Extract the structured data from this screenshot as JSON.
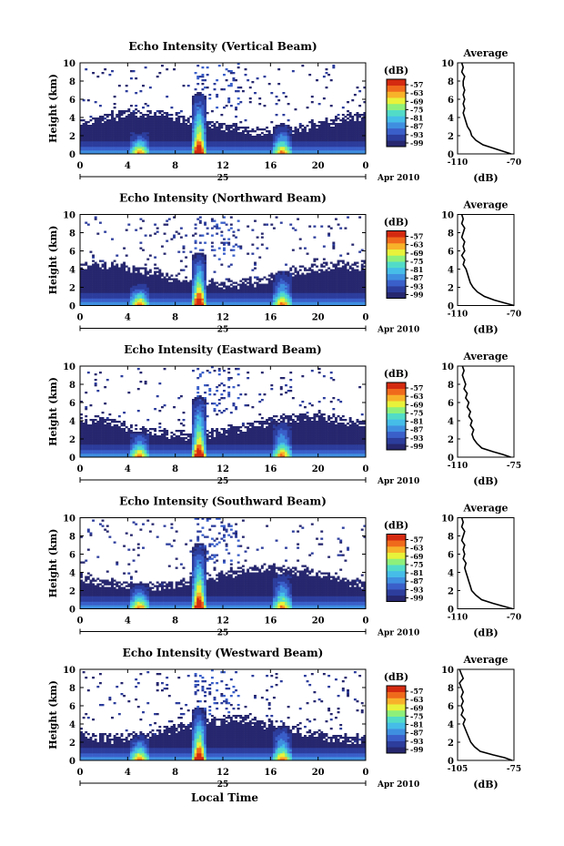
{
  "figure": {
    "date_label": "Apr 2010",
    "day_label": "25",
    "xlabel": "Local Time",
    "ylabel": "Height (km)",
    "colorbar_unit": "(dB)",
    "avg_title": "Average",
    "avg_unit": "(dB)",
    "colormap": [
      "#26276e",
      "#2c3d9c",
      "#3a5fc9",
      "#3f8fe0",
      "#45bde8",
      "#52dcc8",
      "#8ef07a",
      "#e8f23a",
      "#f8b22a",
      "#f06a1c",
      "#d42a10"
    ]
  },
  "chart_data": [
    {
      "type": "heatmap",
      "title": "Echo Intensity (Vertical Beam)",
      "x_ticks": [
        "0",
        "4",
        "8",
        "12",
        "16",
        "20",
        "0"
      ],
      "xlim": [
        0,
        24
      ],
      "y_ticks": [
        "0",
        "2",
        "4",
        "6",
        "8",
        "10"
      ],
      "ylim": [
        0,
        10
      ],
      "colorbar_ticks": [
        "-57",
        "-63",
        "-69",
        "-75",
        "-81",
        "-87",
        "-93",
        "-99"
      ],
      "convective_cells_local_time": [
        5,
        10,
        17
      ],
      "peak_echo_top_km": [
        2.5,
        7.0,
        3.5
      ],
      "avg_profile": {
        "xlim": [
          -110,
          -70
        ],
        "x_ticks": [
          "-110",
          "-70"
        ],
        "y_ticks": [
          "0",
          "2",
          "4",
          "6",
          "8",
          "10"
        ],
        "height_km": [
          0,
          0.3,
          0.6,
          1,
          1.5,
          2,
          2.5,
          3,
          3.5,
          4,
          4.5,
          5,
          5.5,
          6,
          6.5,
          7,
          7.5,
          8,
          8.5,
          9,
          9.5,
          10
        ],
        "db": [
          -72,
          -78,
          -84,
          -92,
          -97,
          -100,
          -101,
          -103,
          -104,
          -105,
          -106,
          -105,
          -106,
          -105,
          -106,
          -105,
          -106,
          -106,
          -105,
          -107,
          -106,
          -107
        ]
      }
    },
    {
      "type": "heatmap",
      "title": "Echo Intensity (Northward Beam)",
      "x_ticks": [
        "0",
        "4",
        "8",
        "12",
        "16",
        "20",
        "0"
      ],
      "xlim": [
        0,
        24
      ],
      "y_ticks": [
        "0",
        "2",
        "4",
        "6",
        "8",
        "10"
      ],
      "ylim": [
        0,
        10
      ],
      "colorbar_ticks": [
        "-57",
        "-63",
        "-69",
        "-75",
        "-81",
        "-87",
        "-93",
        "-99"
      ],
      "convective_cells_local_time": [
        5,
        10,
        17
      ],
      "peak_echo_top_km": [
        2.5,
        6.0,
        4.0
      ],
      "avg_profile": {
        "xlim": [
          -110,
          -70
        ],
        "x_ticks": [
          "-110",
          "-70"
        ],
        "y_ticks": [
          "0",
          "2",
          "4",
          "6",
          "8",
          "10"
        ],
        "height_km": [
          0,
          0.3,
          0.6,
          1,
          1.5,
          2,
          2.5,
          3,
          3.5,
          4,
          4.5,
          5,
          5.5,
          6,
          6.5,
          7,
          7.5,
          8,
          8.5,
          9,
          9.5,
          10
        ],
        "db": [
          -70,
          -77,
          -84,
          -91,
          -96,
          -99,
          -101,
          -102,
          -103,
          -104,
          -106,
          -105,
          -107,
          -105,
          -106,
          -105,
          -107,
          -106,
          -105,
          -107,
          -106,
          -107
        ]
      }
    },
    {
      "type": "heatmap",
      "title": "Echo Intensity (Eastward Beam)",
      "x_ticks": [
        "0",
        "4",
        "8",
        "12",
        "16",
        "20",
        "0"
      ],
      "xlim": [
        0,
        24
      ],
      "y_ticks": [
        "0",
        "2",
        "4",
        "6",
        "8",
        "10"
      ],
      "ylim": [
        0,
        10
      ],
      "colorbar_ticks": [
        "-57",
        "-63",
        "-69",
        "-75",
        "-81",
        "-87",
        "-93",
        "-99"
      ],
      "convective_cells_local_time": [
        5,
        10,
        17
      ],
      "peak_echo_top_km": [
        3.0,
        7.0,
        4.0
      ],
      "avg_profile": {
        "xlim": [
          -110,
          -75
        ],
        "x_ticks": [
          "-110",
          "-75"
        ],
        "y_ticks": [
          "0",
          "2",
          "4",
          "6",
          "8",
          "10"
        ],
        "height_km": [
          0,
          0.3,
          0.6,
          1,
          1.5,
          2,
          2.5,
          3,
          3.5,
          4,
          4.5,
          5,
          5.5,
          6,
          6.5,
          7,
          7.5,
          8,
          8.5,
          9,
          9.5,
          10
        ],
        "db": [
          -77,
          -82,
          -88,
          -95,
          -98,
          -100,
          -101,
          -100,
          -102,
          -101,
          -103,
          -102,
          -104,
          -103,
          -105,
          -104,
          -106,
          -105,
          -106,
          -107,
          -106,
          -107
        ]
      }
    },
    {
      "type": "heatmap",
      "title": "Echo Intensity (Southward Beam)",
      "x_ticks": [
        "0",
        "4",
        "8",
        "12",
        "16",
        "20",
        "0"
      ],
      "xlim": [
        0,
        24
      ],
      "y_ticks": [
        "0",
        "2",
        "4",
        "6",
        "8",
        "10"
      ],
      "ylim": [
        0,
        10
      ],
      "colorbar_ticks": [
        "-57",
        "-63",
        "-69",
        "-75",
        "-81",
        "-87",
        "-93",
        "-99"
      ],
      "convective_cells_local_time": [
        5,
        10,
        17
      ],
      "peak_echo_top_km": [
        3.0,
        7.5,
        4.0
      ],
      "avg_profile": {
        "xlim": [
          -110,
          -70
        ],
        "x_ticks": [
          "-110",
          "-70"
        ],
        "y_ticks": [
          "0",
          "2",
          "4",
          "6",
          "8",
          "10"
        ],
        "height_km": [
          0,
          0.3,
          0.6,
          1,
          1.5,
          2,
          2.5,
          3,
          3.5,
          4,
          4.5,
          5,
          5.5,
          6,
          6.5,
          7,
          7.5,
          8,
          8.5,
          9,
          9.5,
          10
        ],
        "db": [
          -71,
          -78,
          -85,
          -93,
          -97,
          -100,
          -101,
          -102,
          -103,
          -104,
          -105,
          -104,
          -106,
          -105,
          -106,
          -105,
          -107,
          -106,
          -105,
          -107,
          -106,
          -107
        ]
      }
    },
    {
      "type": "heatmap",
      "title": "Echo Intensity (Westward Beam)",
      "x_ticks": [
        "0",
        "4",
        "8",
        "12",
        "16",
        "20",
        "0"
      ],
      "xlim": [
        0,
        24
      ],
      "y_ticks": [
        "0",
        "2",
        "4",
        "6",
        "8",
        "10"
      ],
      "ylim": [
        0,
        10
      ],
      "colorbar_ticks": [
        "-57",
        "-63",
        "-69",
        "-75",
        "-81",
        "-87",
        "-93",
        "-99"
      ],
      "convective_cells_local_time": [
        5,
        10,
        17
      ],
      "peak_echo_top_km": [
        3.0,
        6.0,
        4.0
      ],
      "avg_profile": {
        "xlim": [
          -105,
          -75
        ],
        "x_ticks": [
          "-105",
          "-75"
        ],
        "y_ticks": [
          "0",
          "2",
          "4",
          "6",
          "8",
          "10"
        ],
        "height_km": [
          0,
          0.3,
          0.6,
          1,
          1.5,
          2,
          2.5,
          3,
          3.5,
          4,
          4.5,
          5,
          5.5,
          6,
          6.5,
          7,
          7.5,
          8,
          8.5,
          9,
          9.5,
          10
        ],
        "db": [
          -76,
          -80,
          -86,
          -93,
          -96,
          -98,
          -99,
          -100,
          -101,
          -102,
          -101,
          -103,
          -102,
          -103,
          -102,
          -103,
          -102,
          -103,
          -104,
          -102,
          -103,
          -104
        ]
      }
    }
  ]
}
